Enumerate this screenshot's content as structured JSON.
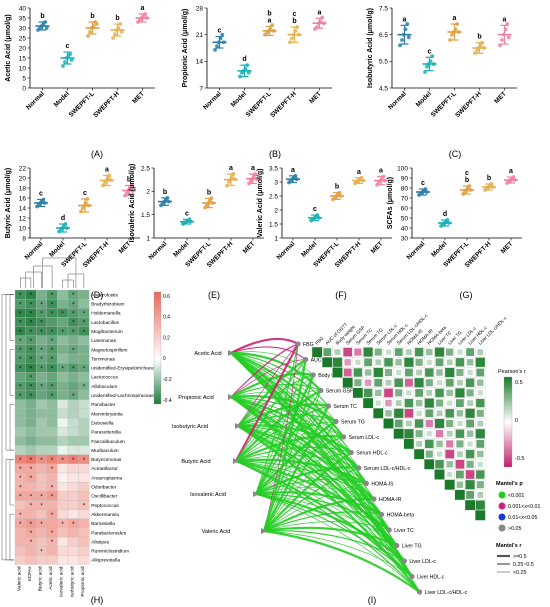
{
  "chart_data": [
    {
      "panel": "A",
      "type": "scatter",
      "ylabel": "Acetic Acid (μmol/g)",
      "yticks": [
        0,
        5,
        10,
        15,
        20,
        25,
        30,
        35,
        40
      ],
      "ylim": [
        0,
        40
      ],
      "categories": [
        "Normal",
        "Model",
        "SWEPFT-L",
        "SWEPFT-H",
        "MET"
      ],
      "colors": [
        "#2a7fa8",
        "#18b0b8",
        "#e0a040",
        "#e8b050",
        "#f080a0"
      ],
      "means": [
        31,
        15,
        30,
        29,
        35
      ],
      "sd": [
        2,
        3,
        3,
        3,
        2
      ],
      "letters": [
        "b",
        "c",
        "b",
        "b",
        "a"
      ],
      "points": [
        [
          29,
          30,
          31,
          32,
          33,
          30
        ],
        [
          11,
          13,
          15,
          16,
          17,
          14
        ],
        [
          26,
          28,
          30,
          31,
          33,
          32
        ],
        [
          25,
          27,
          29,
          30,
          32,
          28
        ],
        [
          33,
          34,
          35,
          36,
          37,
          35
        ]
      ]
    },
    {
      "panel": "B",
      "type": "scatter",
      "ylabel": "Propionic Acid (μmol/g)",
      "yticks": [
        7,
        14,
        21,
        28
      ],
      "ylim": [
        7,
        28
      ],
      "categories": [
        "Normal",
        "Model",
        "SWEPFT-L",
        "SWEPFT-H",
        "MET"
      ],
      "colors": [
        "#2a7fa8",
        "#18b0b8",
        "#e0a040",
        "#e8b050",
        "#f080a0"
      ],
      "means": [
        19,
        11.5,
        22,
        21,
        24
      ],
      "sd": [
        1.5,
        1.5,
        1.2,
        2,
        1.3
      ],
      "letters": [
        "c",
        "d",
        "b\na",
        "c\nb",
        "a"
      ],
      "points": [
        [
          17,
          18,
          19,
          20,
          21,
          19
        ],
        [
          10,
          11,
          11.5,
          12,
          13,
          11
        ],
        [
          21,
          21.5,
          22,
          22.5,
          23.5,
          22
        ],
        [
          19,
          20,
          21,
          22,
          23,
          21
        ],
        [
          22.5,
          23,
          24,
          24.5,
          25.5,
          24
        ]
      ]
    },
    {
      "panel": "C",
      "type": "scatter",
      "ylabel": "Isobutyric Acid (μmol/g)",
      "yticks": [
        4.5,
        5.5,
        6.5,
        7.5
      ],
      "ylim": [
        4.5,
        7.5
      ],
      "categories": [
        "Normal",
        "Model",
        "SWEPFT-L",
        "SWEPFT-H",
        "MET"
      ],
      "colors": [
        "#2a7fa8",
        "#18b0b8",
        "#e0a040",
        "#e8b050",
        "#f080a0"
      ],
      "means": [
        6.5,
        5.4,
        6.6,
        6.0,
        6.5
      ],
      "sd": [
        0.35,
        0.25,
        0.3,
        0.2,
        0.35
      ],
      "letters": [
        "a",
        "c",
        "a",
        "b",
        "a"
      ],
      "points": [
        [
          6.1,
          6.3,
          6.5,
          6.7,
          6.9,
          6.4
        ],
        [
          5.1,
          5.3,
          5.4,
          5.5,
          5.7,
          5.4
        ],
        [
          6.3,
          6.5,
          6.6,
          6.7,
          6.9,
          6.6
        ],
        [
          5.8,
          5.9,
          6.0,
          6.1,
          6.2,
          6.0
        ],
        [
          6.1,
          6.3,
          6.5,
          6.7,
          6.9,
          6.4
        ]
      ]
    },
    {
      "panel": "D",
      "type": "scatter",
      "ylabel": "Butyric Acid (μmol/g)",
      "yticks": [
        8,
        10,
        12,
        14,
        16,
        18,
        20,
        22
      ],
      "ylim": [
        8,
        22
      ],
      "categories": [
        "Normal",
        "Model",
        "SWEPFT-L",
        "SWEPFT-H",
        "MET"
      ],
      "colors": [
        "#2a7fa8",
        "#18b0b8",
        "#e0a040",
        "#e8b050",
        "#f080a0"
      ],
      "means": [
        15,
        10,
        14.5,
        19.5,
        17.5
      ],
      "sd": [
        0.7,
        0.8,
        1.3,
        1.0,
        1.0
      ],
      "letters": [
        "c",
        "d",
        "c",
        "a",
        "b"
      ],
      "points": [
        [
          14.3,
          14.7,
          15,
          15.3,
          15.7,
          15
        ],
        [
          9.3,
          9.7,
          10,
          10.3,
          10.8,
          10
        ],
        [
          13.3,
          14,
          14.5,
          15,
          15.8,
          14.5
        ],
        [
          18.5,
          19,
          19.5,
          20,
          20.5,
          19.6
        ],
        [
          16.5,
          17,
          17.5,
          18,
          18.5,
          17.4
        ]
      ]
    },
    {
      "panel": "E",
      "type": "scatter",
      "ylabel": "Isovaleric Acid (μmol/g)",
      "yticks": [
        1.0,
        1.5,
        2.0,
        2.5
      ],
      "ylim": [
        1.0,
        2.5
      ],
      "categories": [
        "Normal",
        "Model",
        "SWEPFT-L",
        "SWEPFT-H",
        "MET"
      ],
      "colors": [
        "#2a7fa8",
        "#18b0b8",
        "#e0a040",
        "#e8b050",
        "#f080a0"
      ],
      "means": [
        1.78,
        1.35,
        1.75,
        2.25,
        2.27
      ],
      "sd": [
        0.08,
        0.05,
        0.1,
        0.12,
        0.1
      ],
      "letters": [
        "b",
        "c",
        "b",
        "a",
        "a"
      ],
      "points": [
        [
          1.7,
          1.75,
          1.78,
          1.82,
          1.86,
          1.78
        ],
        [
          1.3,
          1.33,
          1.35,
          1.37,
          1.4,
          1.35
        ],
        [
          1.65,
          1.7,
          1.75,
          1.8,
          1.85,
          1.75
        ],
        [
          2.12,
          2.2,
          2.25,
          2.3,
          2.37,
          2.26
        ],
        [
          2.17,
          2.22,
          2.27,
          2.32,
          2.37,
          2.26
        ]
      ]
    },
    {
      "panel": "F",
      "type": "scatter",
      "ylabel": "Valeric Acid (μmol/g)",
      "yticks": [
        1.0,
        1.5,
        2.0,
        2.5,
        3.0,
        3.5
      ],
      "ylim": [
        1.0,
        3.5
      ],
      "categories": [
        "Normal",
        "Model",
        "SWEPFT-L",
        "SWEPFT-H",
        "MET"
      ],
      "colors": [
        "#2a7fa8",
        "#18b0b8",
        "#e0a040",
        "#e8b050",
        "#f080a0"
      ],
      "means": [
        3.1,
        1.72,
        2.5,
        3.05,
        3.05
      ],
      "sd": [
        0.12,
        0.1,
        0.12,
        0.1,
        0.15
      ],
      "letters": [
        "a",
        "c",
        "b",
        "a",
        "a"
      ],
      "points": [
        [
          2.98,
          3.05,
          3.1,
          3.15,
          3.22,
          3.1
        ],
        [
          1.62,
          1.68,
          1.72,
          1.76,
          1.82,
          1.72
        ],
        [
          2.38,
          2.45,
          2.5,
          2.55,
          2.62,
          2.5
        ],
        [
          2.95,
          3.0,
          3.05,
          3.1,
          3.15,
          3.05
        ],
        [
          2.9,
          3.0,
          3.05,
          3.1,
          3.2,
          3.05
        ]
      ]
    },
    {
      "panel": "G",
      "type": "scatter",
      "ylabel": "SCFAs (μmol/g)",
      "yticks": [
        30,
        40,
        50,
        60,
        70,
        80,
        90,
        100
      ],
      "ylim": [
        30,
        100
      ],
      "categories": [
        "Normal",
        "Model",
        "SWEPFT-L",
        "SWEPFT-H",
        "MET"
      ],
      "colors": [
        "#2a7fa8",
        "#18b0b8",
        "#e0a040",
        "#e8b050",
        "#f080a0"
      ],
      "means": [
        76,
        45,
        78,
        81,
        88
      ],
      "sd": [
        3,
        3,
        4,
        3,
        3
      ],
      "letters": [
        "c",
        "d",
        "c\nb",
        "b",
        "a"
      ],
      "points": [
        [
          73,
          75,
          76,
          77,
          79,
          76
        ],
        [
          42,
          44,
          45,
          46,
          48,
          45
        ],
        [
          74,
          76,
          78,
          80,
          82,
          78
        ],
        [
          78,
          80,
          81,
          82,
          84,
          81
        ],
        [
          85,
          87,
          88,
          89,
          91,
          88
        ]
      ]
    },
    {
      "panel": "H",
      "type": "heatmap",
      "rows": [
        "Anaerofustis",
        "Bradyrhizobium",
        "Holdemanella",
        "Lactobacillus",
        "Mogibacterium",
        "Luteimonas",
        "Magnetospirillum",
        "Terrimonas",
        "unidentified-Erysipelotrichaceae",
        "Lactococcus",
        "Allobaculum",
        "unidentified-Lachnospiraceae",
        "Parvibacter",
        "Marvinbryantia",
        "Dubosiella",
        "Parasutterella",
        "Faecalibaculum",
        "Muribaculum",
        "Butyricimonas",
        "Acetatifactor",
        "Anaeroplasma",
        "Odoribacter",
        "Oscillibacter",
        "Peptococcus",
        "Akkermansia",
        "Barnesiella",
        "Parabacteroides",
        "Alistipes",
        "Ruminiclostridium",
        "Alloprevotella"
      ],
      "cols": [
        "Valeric acid",
        "SCFAs",
        "Butyric acid",
        "Acetic acid",
        "Isovaleric acid",
        "Isobutyric acid",
        "Propionic acid"
      ],
      "colorbar": {
        "ticks": [
          "0.6",
          "0.4",
          "0.2",
          "0",
          "-0.2",
          "-0.4"
        ],
        "high": "#e8695a",
        "mid": "#ffffff",
        "low": "#1a7a3a"
      },
      "values": [
        [
          -0.5,
          -0.55,
          -0.35,
          -0.45,
          -0.3,
          -0.4,
          -0.35
        ],
        [
          -0.45,
          -0.5,
          -0.4,
          -0.5,
          -0.35,
          -0.4,
          -0.3
        ],
        [
          -0.55,
          -0.55,
          -0.45,
          -0.5,
          -0.5,
          -0.45,
          -0.4
        ],
        [
          -0.5,
          -0.55,
          -0.5,
          -0.45,
          -0.4,
          -0.5,
          -0.45
        ],
        [
          -0.55,
          -0.5,
          -0.5,
          -0.5,
          -0.45,
          -0.45,
          -0.5
        ],
        [
          -0.4,
          -0.45,
          -0.35,
          -0.4,
          -0.3,
          -0.35,
          -0.3
        ],
        [
          -0.45,
          -0.5,
          -0.4,
          -0.45,
          -0.35,
          -0.4,
          -0.35
        ],
        [
          -0.45,
          -0.5,
          -0.4,
          -0.45,
          -0.3,
          -0.35,
          -0.35
        ],
        [
          -0.5,
          -0.55,
          -0.45,
          -0.5,
          -0.4,
          -0.45,
          -0.4
        ],
        [
          -0.4,
          -0.45,
          -0.35,
          -0.4,
          -0.3,
          -0.35,
          -0.3
        ],
        [
          -0.45,
          -0.5,
          -0.4,
          -0.45,
          -0.35,
          -0.4,
          -0.35
        ],
        [
          -0.45,
          -0.5,
          -0.4,
          -0.45,
          -0.35,
          -0.4,
          -0.3
        ],
        [
          -0.3,
          -0.35,
          -0.25,
          -0.3,
          -0.1,
          -0.2,
          -0.15
        ],
        [
          -0.3,
          -0.35,
          -0.3,
          -0.3,
          -0.15,
          -0.2,
          -0.15
        ],
        [
          -0.3,
          -0.35,
          -0.25,
          -0.3,
          -0.05,
          -0.15,
          -0.2
        ],
        [
          -0.25,
          -0.3,
          -0.25,
          -0.25,
          -0.1,
          -0.15,
          -0.2
        ],
        [
          -0.3,
          -0.35,
          -0.3,
          -0.3,
          -0.2,
          -0.25,
          -0.25
        ],
        [
          -0.2,
          -0.25,
          -0.2,
          -0.2,
          -0.05,
          -0.1,
          -0.1
        ],
        [
          0.5,
          0.55,
          0.45,
          0.5,
          0.45,
          0.5,
          0.45
        ],
        [
          0.35,
          0.35,
          0.3,
          0.35,
          0.1,
          0.15,
          0.15
        ],
        [
          0.3,
          0.35,
          0.25,
          0.3,
          0.05,
          0.1,
          0.1
        ],
        [
          0.3,
          0.3,
          0.25,
          0.3,
          0.1,
          0.15,
          0.2
        ],
        [
          0.35,
          0.35,
          0.35,
          0.4,
          0.2,
          0.2,
          0.25
        ],
        [
          0.25,
          0.3,
          0.3,
          0.3,
          0.2,
          0.2,
          0.25
        ],
        [
          0.3,
          0.3,
          0.25,
          0.35,
          0.15,
          0.1,
          0.15
        ],
        [
          0.35,
          0.4,
          0.35,
          0.35,
          0.3,
          0.35,
          0.3
        ],
        [
          0.3,
          0.35,
          0.3,
          0.35,
          0.25,
          0.3,
          0.25
        ],
        [
          0.3,
          0.3,
          0.25,
          0.3,
          0.1,
          0.2,
          0.25
        ],
        [
          0.25,
          0.3,
          0.25,
          0.3,
          0.15,
          0.15,
          0.2
        ],
        [
          0.2,
          0.25,
          0.2,
          0.2,
          0.1,
          0.1,
          0.15
        ]
      ],
      "stars": [
        [
          "*",
          "*",
          "",
          "*",
          "",
          "*",
          ""
        ],
        [
          "*",
          "*",
          "*",
          "*",
          "",
          "*",
          ""
        ],
        [
          "*",
          "*",
          "*",
          "*",
          "*",
          "*",
          "*"
        ],
        [
          "*",
          "*",
          "*",
          "",
          "",
          "*",
          "*"
        ],
        [
          "*",
          "*",
          "*",
          "*",
          "*",
          "*",
          "*"
        ],
        [
          "*",
          "*",
          "",
          "*",
          "",
          "",
          ""
        ],
        [
          "*",
          "*",
          "*",
          "*",
          "",
          "*",
          ""
        ],
        [
          "*",
          "*",
          "*",
          "*",
          "",
          "",
          ""
        ],
        [
          "*",
          "*",
          "*",
          "*",
          "*",
          "*",
          "*"
        ],
        [
          "",
          "*",
          "",
          "",
          "",
          "",
          ""
        ],
        [
          "*",
          "*",
          "*",
          "*",
          "",
          "",
          "*"
        ],
        [
          "*",
          "*",
          "",
          "*",
          "",
          "*",
          ""
        ],
        [
          "",
          "",
          "",
          "",
          "",
          "",
          ""
        ],
        [
          "",
          "",
          "",
          "",
          "",
          "",
          ""
        ],
        [
          "",
          "",
          "",
          "",
          "",
          "",
          ""
        ],
        [
          "",
          "",
          "",
          "",
          "",
          "",
          ""
        ],
        [
          "",
          "",
          "",
          "",
          "",
          "",
          ""
        ],
        [
          "",
          "",
          "",
          "",
          "",
          "",
          ""
        ],
        [
          "*",
          "*",
          "*",
          "*",
          "*",
          "*",
          "*"
        ],
        [
          "*",
          "*",
          "",
          "*",
          "",
          "",
          ""
        ],
        [
          "*",
          "*",
          "",
          "",
          "",
          "",
          ""
        ],
        [
          "*",
          "",
          "",
          "*",
          "",
          "",
          ""
        ],
        [
          "*",
          "*",
          "*",
          "*",
          "",
          "",
          ""
        ],
        [
          "",
          "*",
          "*",
          "",
          "",
          "",
          "*"
        ],
        [
          "*",
          "",
          "",
          "*",
          "",
          "",
          ""
        ],
        [
          "*",
          "*",
          "*",
          "",
          "*",
          "*",
          ""
        ],
        [
          "",
          "*",
          "",
          "*",
          "",
          "",
          ""
        ],
        [
          "",
          "*",
          "",
          "*",
          "",
          "",
          ""
        ],
        [
          "",
          "",
          "*",
          "",
          "",
          "",
          ""
        ],
        [
          "",
          "",
          "",
          "",
          "",
          "",
          ""
        ]
      ]
    },
    {
      "panel": "I",
      "type": "network-correlation",
      "sources": [
        "Acetic Acid",
        "Propionic Acid",
        "Isobutyric Acid",
        "Butyric Acid",
        "Isovaleric Acid",
        "Valeric Acid"
      ],
      "targets": [
        "FBG",
        "AUC of OGTT",
        "Body weight",
        "Serum GSP",
        "Serum TC",
        "Serum TG",
        "Serum LDL-c",
        "Serum HDL-c",
        "Serum LDL-c/HDL-c",
        "HOMA-IS",
        "HOMA-IR",
        "HOMA-beta",
        "Liver TC",
        "Liver TG",
        "Liver LDL-c",
        "Liver HDL-c",
        "Liver LDL-c/HDL-c"
      ],
      "matrix_colorbar": {
        "title": "Pearson's r",
        "ticks": [
          "0.5",
          "0",
          "-0.5"
        ],
        "high": "#1a7a2a",
        "mid": "#ffffff",
        "low": "#c0206a"
      },
      "legend_p": {
        "title": "Mantel's p",
        "items": [
          "<0.001",
          "0.001<x<0.01",
          "0.01<x<0.05",
          ">0.05"
        ],
        "colors": [
          "#22cc22",
          "#cc2277",
          "#1a3ad0",
          "#888888"
        ]
      },
      "legend_r": {
        "title": "Mantel's r",
        "items": [
          ">=0.5",
          "0.25~0.5",
          "<0.25"
        ],
        "widths": [
          2.2,
          1.2,
          0.6
        ]
      }
    }
  ],
  "panel_labels": [
    "(A)",
    "(B)",
    "(C)",
    "(D)",
    "(E)",
    "(F)",
    "(G)",
    "(H)",
    "(I)"
  ]
}
